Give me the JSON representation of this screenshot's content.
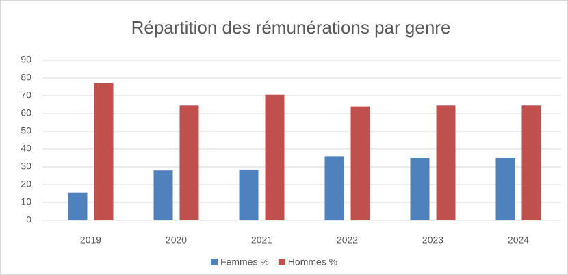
{
  "chart_data": {
    "type": "bar",
    "title": "Répartition des rémunérations par genre",
    "categories": [
      "2019",
      "2020",
      "2021",
      "2022",
      "2023",
      "2024"
    ],
    "series": [
      {
        "name": "Femmes %",
        "color": "#4f81bd",
        "values": [
          15.5,
          28,
          28.5,
          36,
          35,
          35
        ]
      },
      {
        "name": "Hommes %",
        "color": "#c0504d",
        "values": [
          77,
          64.5,
          70.5,
          64,
          64.5,
          64.5
        ]
      }
    ],
    "ylim": [
      0,
      90
    ],
    "yticks": [
      0,
      10,
      20,
      30,
      40,
      50,
      60,
      70,
      80,
      90
    ],
    "grid": true,
    "legend": "bottom"
  }
}
